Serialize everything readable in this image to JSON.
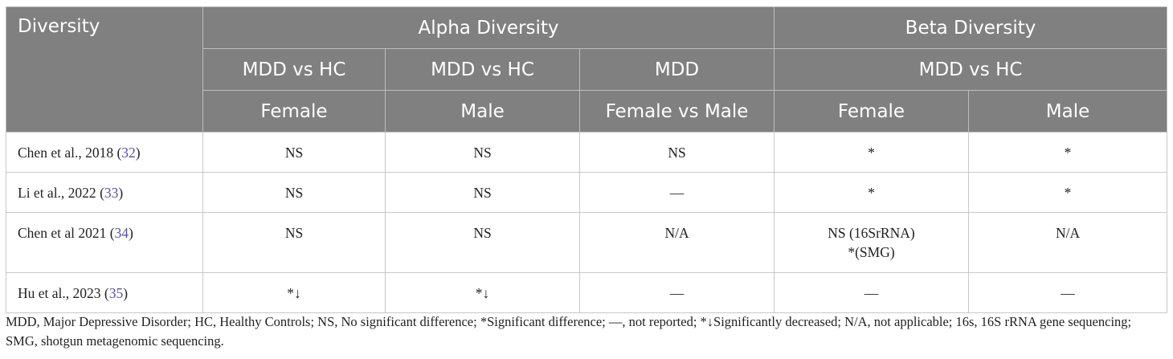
{
  "header": {
    "corner": "Diversity",
    "group_alpha": "Alpha Diversity",
    "group_beta": "Beta Diversity",
    "row2": [
      "MDD vs HC",
      "MDD vs HC",
      "MDD",
      "MDD vs HC"
    ],
    "row3": [
      "Female",
      "Male",
      "Female vs Male",
      "Female",
      "Male"
    ]
  },
  "rows": [
    {
      "study": "Chen et al., 2018",
      "ref": "32",
      "cells": [
        "NS",
        "NS",
        "NS",
        [
          "*"
        ],
        [
          "*"
        ]
      ]
    },
    {
      "study": "Li et al., 2022",
      "ref": "33",
      "cells": [
        "NS",
        "NS",
        "—",
        [
          "*"
        ],
        [
          "*"
        ]
      ]
    },
    {
      "study": "Chen et al 2021",
      "ref": "34",
      "cells": [
        "NS",
        "NS",
        "N/A",
        [
          "NS (16SrRNA)",
          "*(SMG)"
        ],
        [
          "N/A"
        ]
      ]
    },
    {
      "study": "Hu et al., 2023",
      "ref": "35",
      "cells": [
        "*↓",
        "*↓",
        "—",
        [
          "—"
        ],
        [
          "—"
        ]
      ]
    }
  ],
  "footnote": "MDD, Major Depressive Disorder; HC, Healthy Controls; NS, No significant difference; *Significant difference; —, not reported; *↓Significantly decreased; N/A, not applicable; 16s, 16S rRNA gene sequencing; SMG, shotgun metagenomic sequencing.",
  "colors": {
    "header_bg": "#808080",
    "header_text": "#ffffff",
    "ref_link": "#5a4fa8"
  }
}
